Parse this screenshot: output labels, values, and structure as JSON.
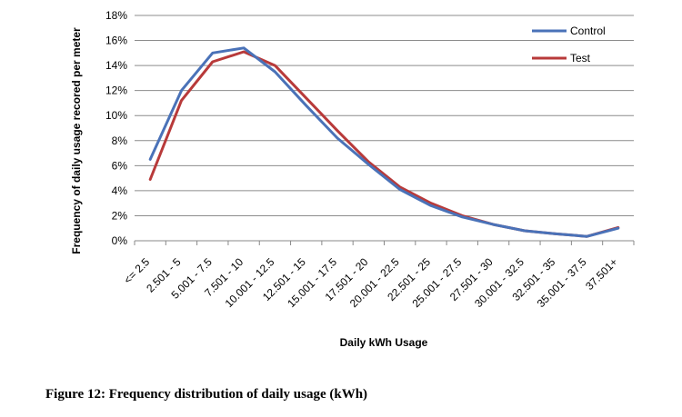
{
  "chart_data": {
    "type": "line",
    "categories": [
      "<= 2.5",
      "2.501 - 5",
      "5.001 - 7.5",
      "7.501 - 10",
      "10.001 - 12.5",
      "12.501 - 15",
      "15.001 - 17.5",
      "17.501 - 20",
      "20.001 - 22.5",
      "22.501 - 25",
      "25.001 - 27.5",
      "27.501 - 30",
      "30.001 - 32.5",
      "32.501 - 35",
      "35.001 - 37.5",
      "37.501+"
    ],
    "series": [
      {
        "name": "Control",
        "color": "#4a72b8",
        "values": [
          6.5,
          12.0,
          15.0,
          15.4,
          13.5,
          10.8,
          8.2,
          6.1,
          4.1,
          2.8,
          1.9,
          1.3,
          0.8,
          0.55,
          0.35,
          1.0
        ]
      },
      {
        "name": "Test",
        "color": "#b83a3a",
        "values": [
          4.9,
          11.2,
          14.3,
          15.1,
          14.0,
          11.4,
          8.8,
          6.3,
          4.3,
          3.0,
          2.0,
          1.3,
          0.8,
          0.55,
          0.35,
          1.05
        ]
      }
    ],
    "yticks": [
      "0%",
      "2%",
      "4%",
      "6%",
      "8%",
      "10%",
      "12%",
      "14%",
      "16%",
      "18%"
    ],
    "ylim": [
      0,
      18
    ],
    "xlabel": "Daily kWh Usage",
    "ylabel": "Frequency of daily usage recored per meter",
    "grid": true,
    "legend": "top-right"
  },
  "caption": "Figure 12: Frequency distribution of daily usage (kWh)"
}
